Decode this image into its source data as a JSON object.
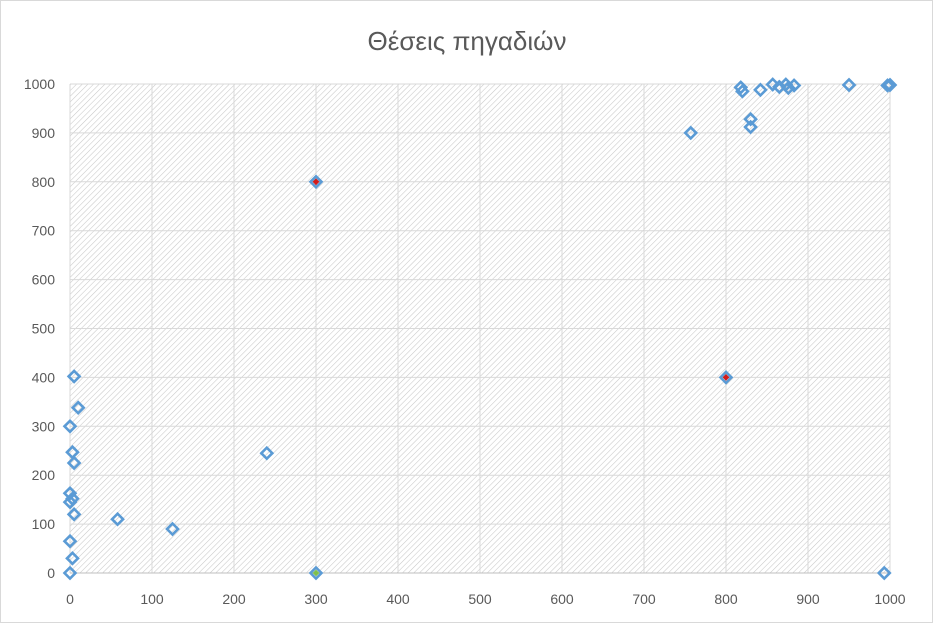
{
  "chart_data": {
    "type": "scatter",
    "title": "Θέσεις πηγαδιών",
    "xlabel": "",
    "ylabel": "",
    "xlim": [
      0,
      1000
    ],
    "ylim": [
      0,
      1000
    ],
    "xticks": [
      0,
      100,
      200,
      300,
      400,
      500,
      600,
      700,
      800,
      900,
      1000
    ],
    "yticks": [
      0,
      100,
      200,
      300,
      400,
      500,
      600,
      700,
      800,
      900,
      1000
    ],
    "grid": true,
    "plot_background": "diagonal-hatch",
    "colors": {
      "marker_stroke": "#5b9bd5",
      "special_red": "#d11b1b",
      "special_green": "#7fbf4d",
      "grid": "#d9d9d9",
      "hatch": "#c8c8c8",
      "text": "#595959"
    },
    "series": [
      {
        "marker": "diamond-open",
        "points": [
          [
            0,
            0
          ],
          [
            3,
            30
          ],
          [
            0,
            65
          ],
          [
            5,
            120
          ],
          [
            0,
            145
          ],
          [
            3,
            152
          ],
          [
            0,
            163
          ],
          [
            5,
            225
          ],
          [
            3,
            247
          ],
          [
            0,
            300
          ],
          [
            10,
            338
          ],
          [
            5,
            402
          ],
          [
            58,
            110
          ],
          [
            125,
            90
          ],
          [
            240,
            245
          ],
          [
            300,
            0
          ],
          [
            300,
            800
          ],
          [
            757,
            900
          ],
          [
            800,
            400
          ],
          [
            818,
            993
          ],
          [
            820,
            985
          ],
          [
            830,
            928
          ],
          [
            830,
            912
          ],
          [
            842,
            988
          ],
          [
            857,
            999
          ],
          [
            865,
            994
          ],
          [
            873,
            999
          ],
          [
            876,
            992
          ],
          [
            883,
            997
          ],
          [
            950,
            998
          ],
          [
            993,
            0
          ],
          [
            997,
            997
          ],
          [
            1000,
            998
          ]
        ]
      }
    ],
    "highlighted_points": [
      {
        "x": 300,
        "y": 800,
        "fill": "special_red"
      },
      {
        "x": 800,
        "y": 400,
        "fill": "special_red"
      },
      {
        "x": 300,
        "y": 0,
        "fill": "special_green"
      }
    ]
  }
}
